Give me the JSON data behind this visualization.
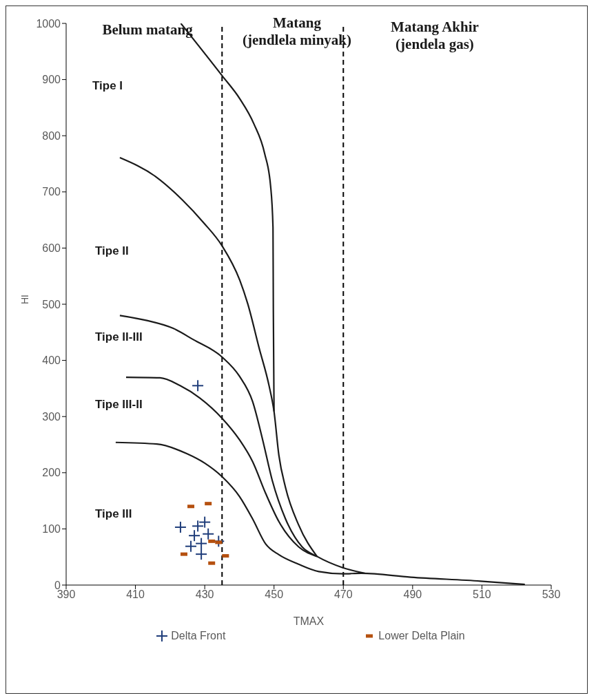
{
  "chart_data": {
    "type": "line",
    "xlabel": "TMAX",
    "ylabel": "HI",
    "xlim": [
      390,
      530
    ],
    "xticks": [
      390,
      410,
      430,
      450,
      470,
      490,
      510,
      530
    ],
    "ylim": [
      0,
      1000
    ],
    "yticks": [
      0,
      100,
      200,
      300,
      400,
      500,
      600,
      700,
      800,
      900,
      1000
    ],
    "grid": false,
    "legend": "bottom",
    "series": [
      {
        "color": "#1a1a1a",
        "marker": "none",
        "line_style": "solid",
        "x": [
          423.1,
          435,
          440.1,
          444.2,
          447.3,
          449,
          449.7,
          449.8,
          450
        ],
        "values": [
          1000,
          907,
          866,
          821,
          768,
          711,
          637,
          490,
          309
        ]
      },
      {
        "color": "#1a1a1a",
        "marker": "none",
        "line_style": "solid",
        "x": [
          405.5,
          415.9,
          423.5,
          429.7,
          435,
          440.1,
          442.4,
          445.7,
          448.6,
          450,
          451.4,
          453.3,
          457.1,
          462.4
        ],
        "values": [
          761,
          727,
          686,
          645,
          604,
          543,
          501,
          422,
          354,
          309,
          231,
          174,
          107,
          51
        ]
      },
      {
        "color": "#1a1a1a",
        "marker": "none",
        "line_style": "solid",
        "x": [
          405.5,
          413.3,
          420.9,
          426.7,
          435,
          440,
          443.8,
          446.7,
          449.5,
          453.3,
          458.1,
          462.4,
          469.8,
          476.2
        ],
        "values": [
          480,
          471,
          457,
          437,
          406,
          372,
          327,
          259,
          186,
          118,
          68,
          51,
          31,
          21
        ]
      },
      {
        "color": "#1a1a1a",
        "marker": "none",
        "line_style": "solid",
        "x": [
          407.3,
          417.1,
          422.9,
          428.6,
          435,
          440,
          443.8,
          447.6,
          451.4,
          457.1,
          462.4
        ],
        "values": [
          370,
          369,
          355,
          333,
          297,
          259,
          220,
          163,
          113,
          68,
          51
        ]
      },
      {
        "color": "#1a1a1a",
        "marker": "none",
        "line_style": "solid",
        "x": [
          404.3,
          416.2,
          424.8,
          430,
          435,
          440,
          443.8,
          447.6,
          451.4,
          457.1,
          462.9,
          469.8,
          475.2,
          489.5,
          509.6,
          522.4
        ],
        "values": [
          254,
          251,
          234,
          217,
          193,
          158,
          118,
          73,
          54,
          37,
          24,
          20,
          21,
          14,
          7,
          1
        ]
      },
      {
        "type": "scatter",
        "name": "Delta Front",
        "color": "#1f3d7a",
        "marker": "cross",
        "x": [
          428,
          423,
          428,
          430,
          427,
          431,
          429,
          426,
          429,
          434
        ],
        "values": [
          355,
          103,
          105,
          112,
          88,
          91,
          74,
          69,
          55,
          78
        ]
      },
      {
        "type": "scatter",
        "name": "Lower Delta Plain",
        "color": "#b5500f",
        "marker": "square",
        "x": [
          426,
          431,
          432,
          434,
          424,
          436,
          432
        ],
        "values": [
          140,
          145,
          78,
          76,
          55,
          52,
          39
        ]
      }
    ],
    "ref_lines": [
      {
        "axis": "x",
        "value": 435,
        "color": "#000000",
        "line_style": "dashed"
      },
      {
        "axis": "x",
        "value": 470,
        "color": "#000000",
        "line_style": "dashed"
      }
    ],
    "annotations": [
      "Belum matang",
      "Matang\n(jendlela minyak)",
      "Matang Akhir\n(jendela gas)",
      "Tipe I",
      "Tipe II",
      "Tipe II-III",
      "Tipe III-II",
      "Tipe III"
    ]
  }
}
